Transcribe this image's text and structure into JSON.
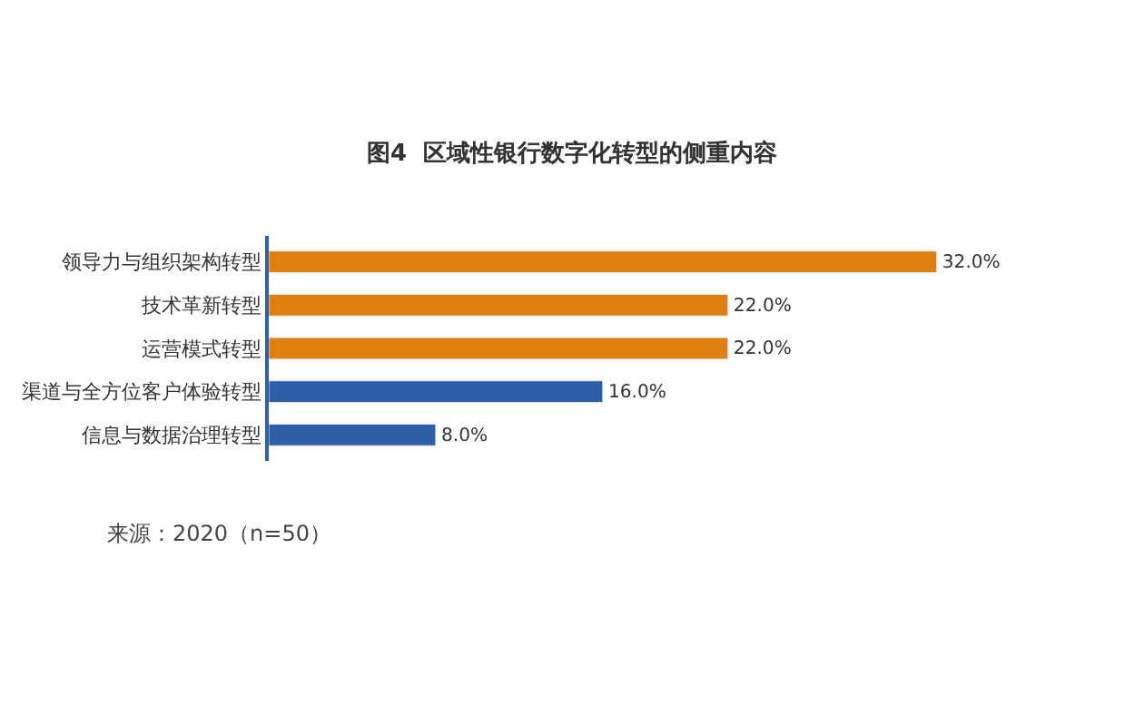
{
  "chart_data": {
    "type": "bar",
    "orientation": "horizontal",
    "title": "图4  区域性银行数字化转型的侧重内容",
    "categories": [
      "领导力与组织架构转型",
      "技术革新转型",
      "运营模式转型",
      "渠道与全方位客户体验转型",
      "信息与数据治理转型"
    ],
    "values": [
      32.0,
      22.0,
      22.0,
      16.0,
      8.0
    ],
    "colors": [
      "#e07f10",
      "#e07f10",
      "#e07f10",
      "#2f5ea8",
      "#2f5ea8"
    ],
    "value_labels": [
      "32.0%",
      "22.0%",
      "22.0%",
      "16.0%",
      "8.0%"
    ],
    "annotations": [
      "来源：2020（n=50）"
    ],
    "legend": false
  }
}
